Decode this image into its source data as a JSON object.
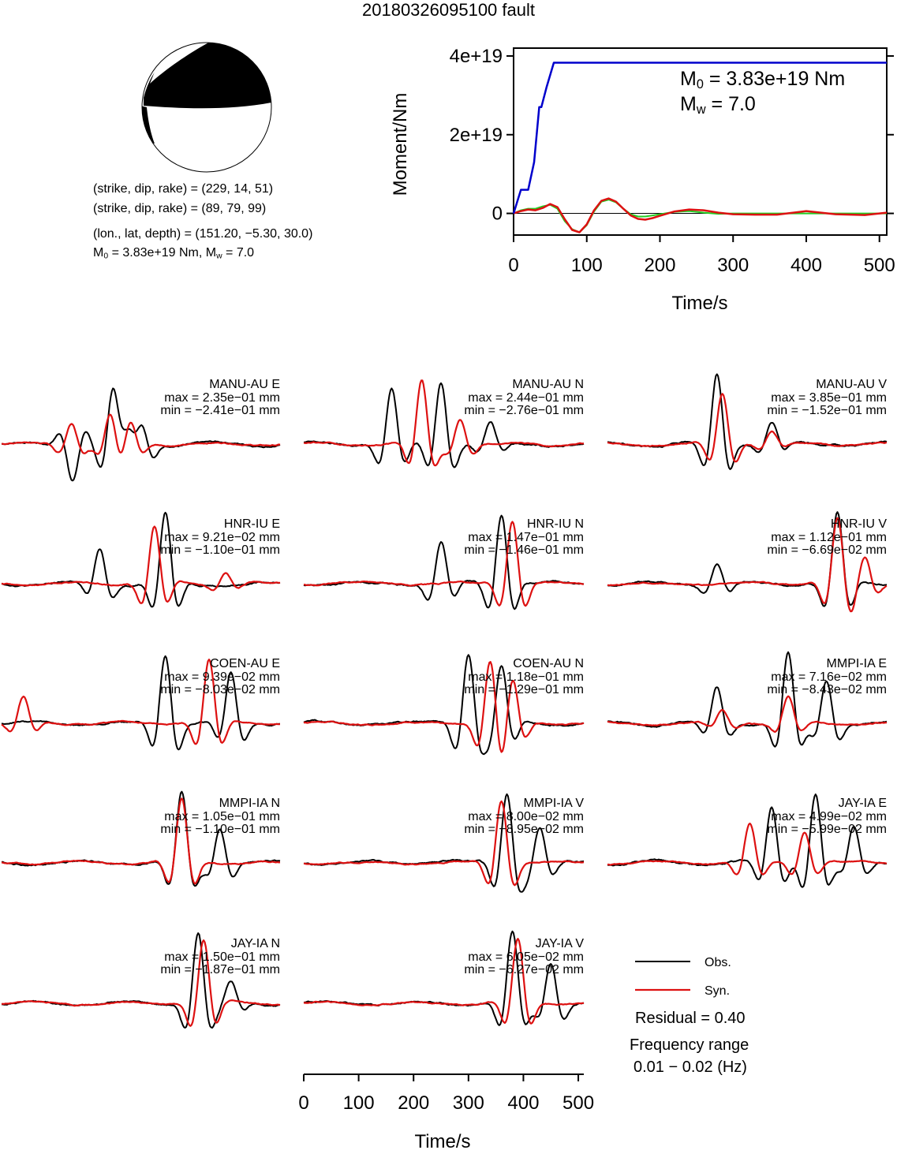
{
  "title": "20180326095100 fault",
  "mechanism": {
    "line1": "(strike, dip, rake) = (229, 14, 51)",
    "line2": "(strike, dip, rake) = (89, 79, 99)",
    "line3": "(lon., lat, depth) = (151.20, −5.30, 30.0)",
    "m0_prefix": "M",
    "m0_value": "= 3.83e+19 Nm, M",
    "mw_value": "= 7.0",
    "sub0": "0",
    "subw": "w"
  },
  "moment_plot": {
    "ylabel": "Moment/Nm",
    "xlabel": "Time/s",
    "xticks": [
      "0",
      "100",
      "200",
      "300",
      "400",
      "500"
    ],
    "yticks": [
      "0",
      "2e+19",
      "4e+19"
    ],
    "m0_text": "= 3.83e+19 Nm",
    "mw_text": "= 7.0",
    "m_letter": "M",
    "sub0": "0",
    "subw": "w",
    "colors": {
      "cumulative": "#0000cc",
      "rate_green": "#22cc22",
      "rate_red": "#dd1111"
    }
  },
  "chart_data": {
    "type": "line",
    "moment": {
      "xlim": [
        0,
        510
      ],
      "ylim": [
        -5.5e+18,
        4.2e+19
      ],
      "cumulative": {
        "x": [
          0,
          10,
          20,
          28,
          35,
          38,
          45,
          55,
          62,
          510
        ],
        "y": [
          0.0,
          6e+18,
          6e+18,
          1.3e+19,
          2.7e+19,
          2.7e+19,
          3.2e+19,
          3.83e+19,
          3.83e+19,
          3.83e+19
        ]
      },
      "rate_green": {
        "x": [
          0,
          10,
          20,
          30,
          40,
          50,
          60,
          70,
          80,
          90,
          100,
          110,
          120,
          130,
          140,
          150,
          160,
          170,
          180,
          190,
          200,
          220,
          240,
          260,
          280,
          300,
          340,
          380,
          420,
          460,
          510
        ],
        "y": [
          0,
          8e+17,
          1.2e+18,
          1.2e+18,
          1.8e+18,
          2.2e+18,
          1.2e+18,
          -2e+18,
          -4e+18,
          -4.8e+18,
          -3e+18,
          5e+17,
          3e+18,
          3.5e+18,
          2.8e+18,
          1.2e+18,
          -2e+17,
          -8e+17,
          -8e+17,
          -5e+17,
          -2e+17,
          4e+17,
          6e+17,
          2e+17,
          -1e+17,
          0,
          0,
          0,
          0,
          0,
          0
        ]
      },
      "rate_red": {
        "x": [
          0,
          10,
          20,
          30,
          40,
          50,
          60,
          70,
          80,
          90,
          100,
          110,
          120,
          130,
          140,
          150,
          160,
          170,
          180,
          190,
          200,
          220,
          240,
          260,
          280,
          300,
          330,
          360,
          400,
          440,
          480,
          510
        ],
        "y": [
          0,
          6e+17,
          1e+18,
          8e+17,
          1.4e+18,
          2.4e+18,
          1.6e+18,
          -1.5e+18,
          -4.2e+18,
          -4.8e+18,
          -2.8e+18,
          8e+17,
          3.2e+18,
          3.8e+18,
          3e+18,
          1.2e+18,
          -5e+17,
          -1.4e+18,
          -1.6e+18,
          -1.2e+18,
          -6e+17,
          5e+17,
          1e+18,
          8e+17,
          2e+17,
          -2e+17,
          -3e+17,
          -3e+17,
          6e+17,
          -2e+17,
          -4e+17,
          2e+17
        ]
      }
    },
    "waveforms": {
      "xlabel": "Time/s",
      "xticks": [
        "0",
        "100",
        "200",
        "300",
        "400",
        "500"
      ],
      "xlim": [
        0,
        510
      ],
      "obs_color": "#000000",
      "syn_color": "#dd1111",
      "traces": [
        {
          "station": "MANU-AU E",
          "max": "max = 2.35e−01 mm",
          "min": "min = −2.41e−01 mm",
          "obs": [
            {
              "t": 130,
              "a": -0.5
            },
            {
              "t": 205,
              "a": 1.0
            },
            {
              "t": 230,
              "a": 0.7
            },
            {
              "t": 255,
              "a": 0.5
            }
          ],
          "syn": [
            {
              "t": 128,
              "a": 0.35
            },
            {
              "t": 200,
              "a": 0.5
            },
            {
              "t": 235,
              "a": 0.4
            }
          ]
        },
        {
          "station": "MANU-AU N",
          "max": "max = 2.44e−01 mm",
          "min": "min = −2.76e−01 mm",
          "obs": [
            {
              "t": 160,
              "a": 0.8
            },
            {
              "t": 250,
              "a": 0.9
            },
            {
              "t": 340,
              "a": 0.3
            }
          ],
          "syn": [
            {
              "t": 215,
              "a": 1.0
            },
            {
              "t": 285,
              "a": 0.4
            }
          ]
        },
        {
          "station": "MANU-AU V",
          "max": "max = 3.85e−01 mm",
          "min": "min = −1.52e−01 mm",
          "obs": [
            {
              "t": 200,
              "a": 1.0
            },
            {
              "t": 300,
              "a": 0.3
            }
          ],
          "syn": [
            {
              "t": 210,
              "a": 0.8
            },
            {
              "t": 300,
              "a": 0.2
            }
          ]
        },
        {
          "station": "HNR-IU E",
          "max": "max = 9.21e−02 mm",
          "min": "min = −1.10e−01 mm",
          "obs": [
            {
              "t": 180,
              "a": 0.5
            },
            {
              "t": 300,
              "a": 1.0
            }
          ],
          "syn": [
            {
              "t": 280,
              "a": 0.9
            },
            {
              "t": 410,
              "a": 0.2
            }
          ]
        },
        {
          "station": "HNR-IU N",
          "max": "max = 1.47e−01 mm",
          "min": "min = −1.46e−01 mm",
          "obs": [
            {
              "t": 250,
              "a": 0.6
            },
            {
              "t": 360,
              "a": 1.0
            }
          ],
          "syn": [
            {
              "t": 380,
              "a": 1.0
            }
          ]
        },
        {
          "station": "HNR-IU V",
          "max": "max = 1.12e−01 mm",
          "min": "min = −6.69e−02 mm",
          "obs": [
            {
              "t": 200,
              "a": 0.3
            },
            {
              "t": 420,
              "a": 1.0
            }
          ],
          "syn": [
            {
              "t": 420,
              "a": 1.0
            },
            {
              "t": 470,
              "a": 0.4
            }
          ]
        },
        {
          "station": "COEN-AU E",
          "max": "max = 9.39e−02 mm",
          "min": "min = −8.03e−02 mm",
          "obs": [
            {
              "t": 300,
              "a": 1.0
            },
            {
              "t": 420,
              "a": 0.7
            }
          ],
          "syn": [
            {
              "t": 40,
              "a": 0.4
            },
            {
              "t": 380,
              "a": 1.0
            }
          ]
        },
        {
          "station": "COEN-AU N",
          "max": "max = 1.18e−01 mm",
          "min": "min = −1.29e−01 mm",
          "obs": [
            {
              "t": 300,
              "a": 1.0
            },
            {
              "t": 360,
              "a": 0.8
            }
          ],
          "syn": [
            {
              "t": 340,
              "a": 1.0
            },
            {
              "t": 380,
              "a": 0.7
            }
          ]
        },
        {
          "station": "MMPI-IA E",
          "max": "max = 7.16e−02 mm",
          "min": "min = −8.43e−02 mm",
          "obs": [
            {
              "t": 200,
              "a": 0.5
            },
            {
              "t": 330,
              "a": 1.0
            },
            {
              "t": 400,
              "a": 0.6
            }
          ],
          "syn": [
            {
              "t": 210,
              "a": 0.2
            },
            {
              "t": 330,
              "a": 0.4
            }
          ]
        },
        {
          "station": "MMPI-IA N",
          "max": "max = 1.05e−01 mm",
          "min": "min = −1.10e−01 mm",
          "obs": [
            {
              "t": 330,
              "a": 1.0
            },
            {
              "t": 400,
              "a": 0.5
            }
          ],
          "syn": [
            {
              "t": 330,
              "a": 1.0
            }
          ]
        },
        {
          "station": "MMPI-IA V",
          "max": "max = 8.00e−02 mm",
          "min": "min = −8.95e−02 mm",
          "obs": [
            {
              "t": 370,
              "a": 1.0
            },
            {
              "t": 430,
              "a": 0.5
            }
          ],
          "syn": [
            {
              "t": 360,
              "a": 1.0
            }
          ]
        },
        {
          "station": "JAY-IA E",
          "max": "max = 4.99e−02 mm",
          "min": "min = −5.99e−02 mm",
          "obs": [
            {
              "t": 300,
              "a": 0.8
            },
            {
              "t": 380,
              "a": 1.0
            },
            {
              "t": 450,
              "a": 0.5
            }
          ],
          "syn": [
            {
              "t": 260,
              "a": 0.6
            },
            {
              "t": 360,
              "a": 0.5
            }
          ]
        },
        {
          "station": "JAY-IA N",
          "max": "max = 1.50e−01 mm",
          "min": "min = −1.87e−01 mm",
          "obs": [
            {
              "t": 360,
              "a": 1.0
            },
            {
              "t": 420,
              "a": 0.3
            }
          ],
          "syn": [
            {
              "t": 370,
              "a": 1.0
            }
          ]
        },
        {
          "station": "JAY-IA V",
          "max": "max = 6.05e−02 mm",
          "min": "min = −6.27e−02 mm",
          "obs": [
            {
              "t": 380,
              "a": 1.0
            },
            {
              "t": 450,
              "a": 0.6
            }
          ],
          "syn": [
            {
              "t": 390,
              "a": 1.0
            }
          ]
        }
      ]
    },
    "beachball": {
      "strike": 229,
      "dip": 14,
      "rake": 51
    }
  },
  "legend": {
    "obs": "Obs.",
    "syn": "Syn.",
    "residual": "Residual = 0.40",
    "freq_label": "Frequency range",
    "freq_value": "0.01 − 0.02 (Hz)"
  }
}
